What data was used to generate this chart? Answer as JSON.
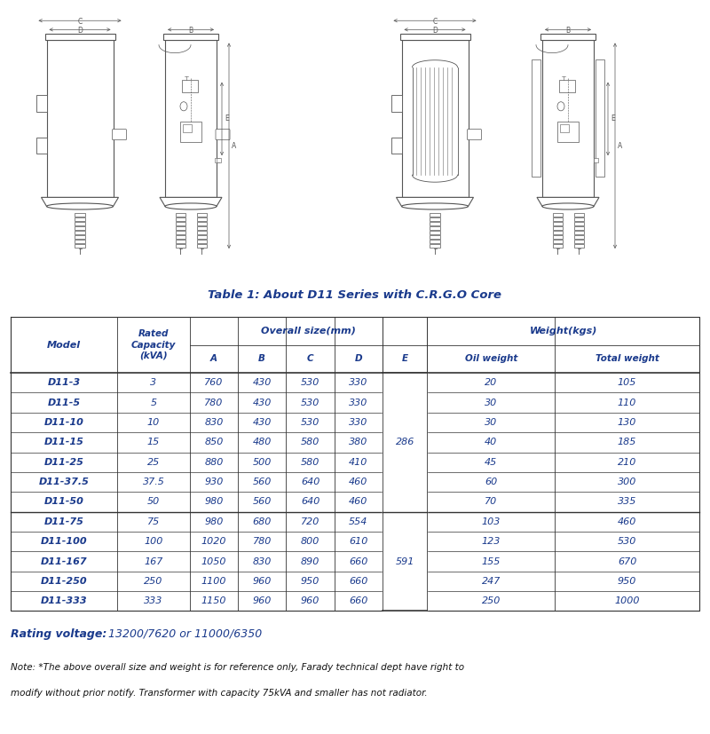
{
  "title": "Table 1: About D11 Series with C.R.G.O Core",
  "blue": "#1a3a8c",
  "dark": "#333333",
  "rating_voltage_label": "Rating voltage:",
  "rating_voltage_value": "13200/7620 or 11000/6350",
  "note_line1": "Note: *The above overall size and weight is for reference only, Farady technical dept have right to",
  "note_line2": "modify without prior notify. Transformer with capacity 75kVA and smaller has not radiator.",
  "rows": [
    [
      "D11-3",
      "3",
      "760",
      "430",
      "530",
      "330",
      "",
      "20",
      "105"
    ],
    [
      "D11-5",
      "5",
      "780",
      "430",
      "530",
      "330",
      "",
      "30",
      "110"
    ],
    [
      "D11-10",
      "10",
      "830",
      "430",
      "530",
      "330",
      "",
      "30",
      "130"
    ],
    [
      "D11-15",
      "15",
      "850",
      "480",
      "580",
      "380",
      "286",
      "40",
      "185"
    ],
    [
      "D11-25",
      "25",
      "880",
      "500",
      "580",
      "410",
      "",
      "45",
      "210"
    ],
    [
      "D11-37.5",
      "37.5",
      "930",
      "560",
      "640",
      "460",
      "",
      "60",
      "300"
    ],
    [
      "D11-50",
      "50",
      "980",
      "560",
      "640",
      "460",
      "",
      "70",
      "335"
    ],
    [
      "D11-75",
      "75",
      "980",
      "680",
      "720",
      "554",
      "",
      "103",
      "460"
    ],
    [
      "D11-100",
      "100",
      "1020",
      "780",
      "800",
      "610",
      "",
      "123",
      "530"
    ],
    [
      "D11-167",
      "167",
      "1050",
      "830",
      "890",
      "660",
      "591",
      "155",
      "670"
    ],
    [
      "D11-250",
      "250",
      "1100",
      "960",
      "950",
      "660",
      "",
      "247",
      "950"
    ],
    [
      "D11-333",
      "333",
      "1150",
      "960",
      "960",
      "660",
      "",
      "250",
      "1000"
    ]
  ],
  "bg_color": "#ffffff"
}
